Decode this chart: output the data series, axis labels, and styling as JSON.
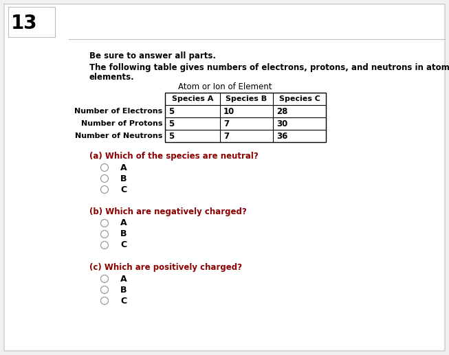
{
  "question_number": "13",
  "bg_color": "#f0f0f0",
  "content_bg": "#ffffff",
  "instruction": "Be sure to answer all parts.",
  "description_line1": "The following table gives numbers of electrons, protons, and neutrons in atoms or ions of a number of",
  "description_line2": "elements.",
  "table_title": "Atom or Ion of Element",
  "table_headers": [
    "Species A",
    "Species B",
    "Species C"
  ],
  "table_rows": [
    [
      "Number of Electrons",
      "5",
      "10",
      "28"
    ],
    [
      "Number of Protons",
      "5",
      "7",
      "30"
    ],
    [
      "Number of Neutrons",
      "5",
      "7",
      "36"
    ]
  ],
  "questions": [
    {
      "label": "(a) Which of the species are neutral?",
      "options": [
        "A",
        "B",
        "C"
      ]
    },
    {
      "label": "(b) Which are negatively charged?",
      "options": [
        "A",
        "B",
        "C"
      ]
    },
    {
      "label": "(c) Which are positively charged?",
      "options": [
        "A",
        "B",
        "C"
      ]
    }
  ],
  "question_color": "#8B0000",
  "text_color": "#000000",
  "border_color": "#c0c0c0",
  "table_border_color": "#000000",
  "num_box_border": "#bbbbbb"
}
